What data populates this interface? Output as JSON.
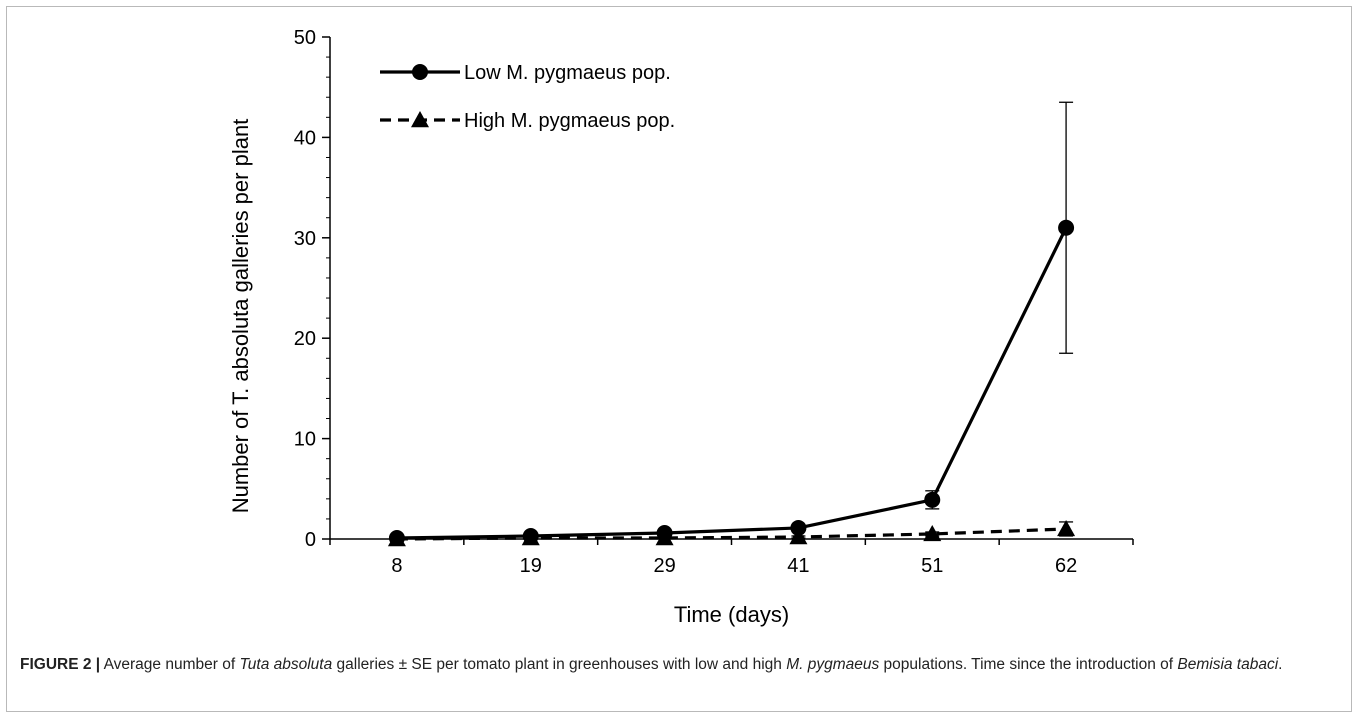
{
  "chart_data": {
    "type": "line",
    "title": "",
    "xlabel": "Time (days)",
    "ylabel": "Number of T. absoluta galleries per plant",
    "categories": [
      "8",
      "19",
      "29",
      "41",
      "51",
      "62"
    ],
    "ylim": [
      0,
      50
    ],
    "yticks": [
      0,
      10,
      20,
      30,
      40,
      50
    ],
    "legend_position": "top-left",
    "grid": false,
    "series": [
      {
        "name": "Low M. pygmaeus pop.",
        "values": [
          0.1,
          0.3,
          0.6,
          1.1,
          3.9,
          31.0
        ],
        "error": [
          0.0,
          0.1,
          0.2,
          0.3,
          0.9,
          12.5
        ],
        "marker": "circle",
        "line": "solid"
      },
      {
        "name": "High M. pygmaeus pop.",
        "values": [
          0.0,
          0.1,
          0.1,
          0.2,
          0.5,
          1.0
        ],
        "error": [
          0.0,
          0.0,
          0.05,
          0.1,
          0.2,
          0.7
        ],
        "marker": "triangle",
        "line": "dashed"
      }
    ]
  },
  "caption": {
    "label": "FIGURE 2 |",
    "part1": " Average number of ",
    "italic1": "Tuta absoluta",
    "part2": " galleries ± SE per tomato plant in greenhouses with low and high ",
    "italic2": "M. pygmaeus",
    "part3": " populations. Time since the introduction of ",
    "italic3": "Bemisia tabaci",
    "part4": "."
  }
}
